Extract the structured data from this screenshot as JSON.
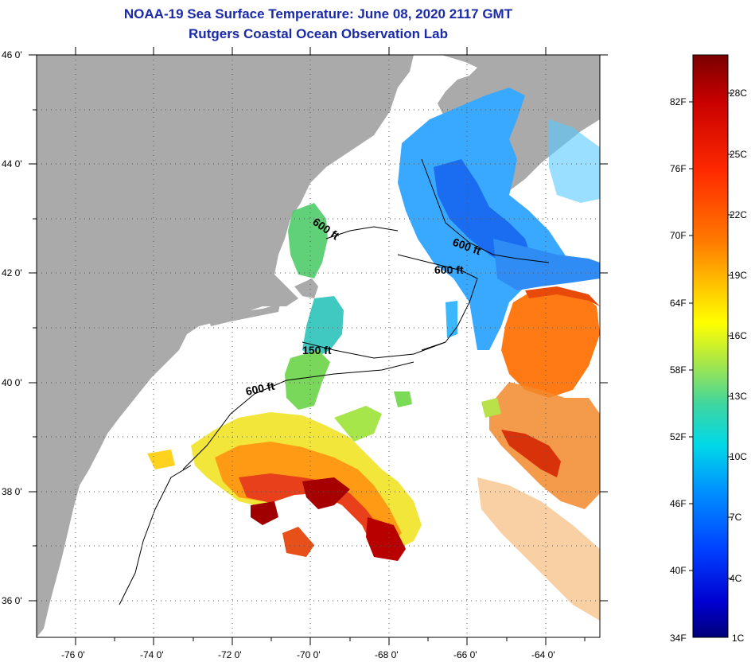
{
  "title_line1": "NOAA-19 Sea Surface Temperature:  June 08, 2020 2117 GMT",
  "title_line2": "Rutgers Coastal Ocean Observation Lab",
  "lon_ticks": [
    "-76 0'",
    "-74 0'",
    "-72 0'",
    "-70 0'",
    "-68 0'",
    "-66 0'",
    "-64 0'"
  ],
  "lat_ticks": [
    "46 0'",
    "44 0'",
    "42 0'",
    "40 0'",
    "38 0'",
    "36 0'"
  ],
  "contours": [
    "600 ft",
    "600 ft",
    "600 ft",
    "150 ft",
    "600 ft"
  ],
  "colorbar": {
    "f_labels": [
      "82F",
      "76F",
      "70F",
      "64F",
      "58F",
      "52F",
      "46F",
      "40F",
      "34F"
    ],
    "c_labels": [
      "28C",
      "25C",
      "22C",
      "19C",
      "16C",
      "13C",
      "10C",
      "7C",
      "4C",
      "1C"
    ],
    "colors": [
      "#7a0000",
      "#c80000",
      "#ff2a00",
      "#ff7a00",
      "#ffc800",
      "#ffff00",
      "#a6e64a",
      "#3fd6a0",
      "#00d8e8",
      "#0090ff",
      "#0040ff",
      "#0000d0",
      "#00007a"
    ]
  },
  "colors": {
    "land": "#aaaaaa",
    "ocean": "#ffffff",
    "title": "#1a2aa8"
  }
}
